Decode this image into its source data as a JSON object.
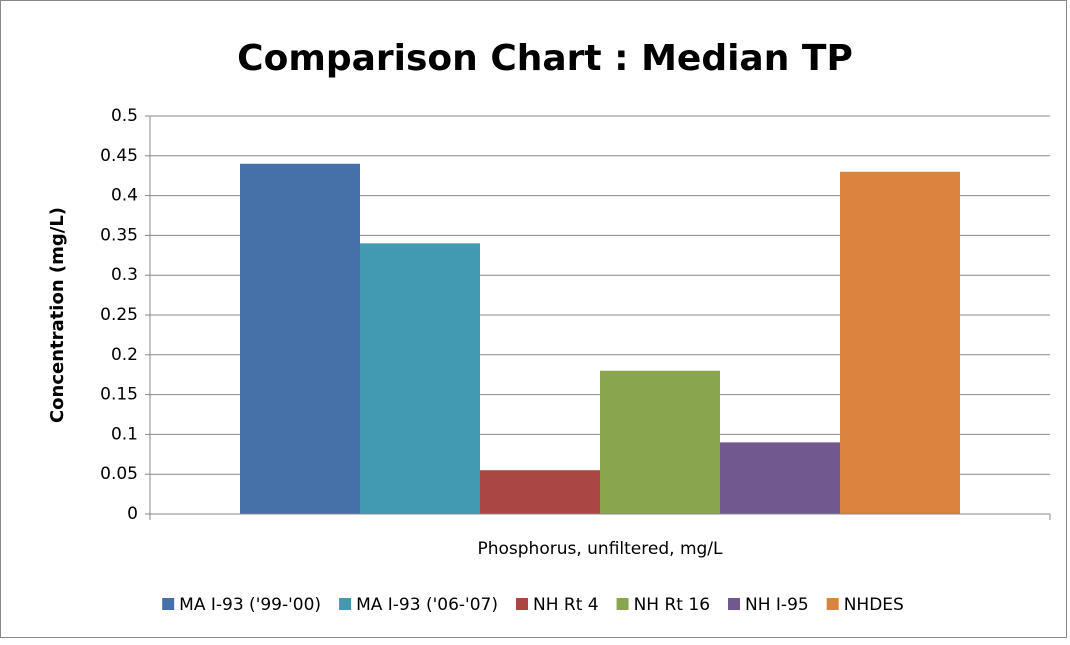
{
  "chart_data": {
    "type": "bar",
    "title": "Comparison Chart : Median TP",
    "ylabel": "Concentration (mg/L)",
    "categories": [
      "Phosphorus, unfiltered, mg/L"
    ],
    "series": [
      {
        "name": "MA I-93 ('99-'00)",
        "color": "#4671a8",
        "values": [
          0.44
        ]
      },
      {
        "name": "MA I-93 ('06-'07)",
        "color": "#4299b2",
        "values": [
          0.34
        ]
      },
      {
        "name": "NH Rt 4",
        "color": "#aa4644",
        "values": [
          0.055
        ]
      },
      {
        "name": "NH Rt 16",
        "color": "#89a54e",
        "values": [
          0.18
        ]
      },
      {
        "name": "NH I-95",
        "color": "#71588f",
        "values": [
          0.09
        ]
      },
      {
        "name": "NHDES",
        "color": "#db843d",
        "values": [
          0.43
        ]
      }
    ],
    "ylim": [
      0,
      0.5
    ],
    "yticks": [
      0,
      0.05,
      0.1,
      0.15,
      0.2,
      0.25,
      0.3,
      0.35,
      0.4,
      0.45,
      0.5
    ],
    "grid": true,
    "legend": "bottom"
  }
}
